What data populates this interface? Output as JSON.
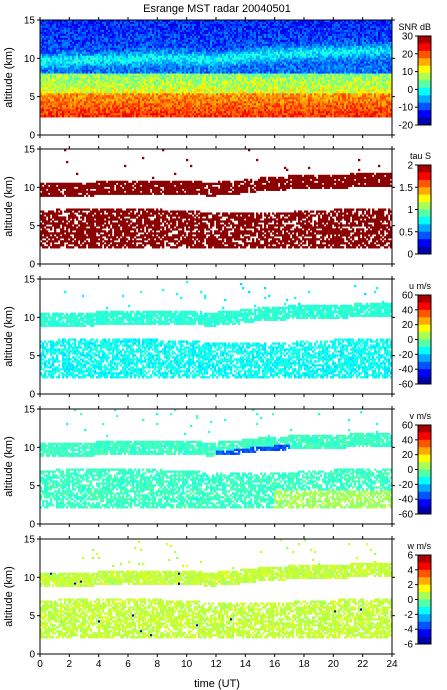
{
  "chart_data": {
    "type": "heatmap",
    "title": "Esrange MST radar 20040501",
    "xlabel": "time (UT)",
    "x_range": [
      0,
      24
    ],
    "x_ticks": [
      0,
      2,
      4,
      6,
      8,
      10,
      12,
      14,
      16,
      18,
      20,
      22,
      24
    ],
    "panels": [
      {
        "name": "snr",
        "ylabel": "altitude (km)",
        "y_range": [
          0,
          15
        ],
        "y_ticks": [
          0,
          5,
          10,
          15
        ],
        "colorbar_label": "SNR dB",
        "colorbar_range": [
          -20,
          30
        ],
        "colorbar_ticks": [
          -20,
          -10,
          0,
          10,
          20,
          30
        ]
      },
      {
        "name": "tau",
        "ylabel": "altitude (km)",
        "y_range": [
          0,
          15
        ],
        "y_ticks": [
          0,
          5,
          10,
          15
        ],
        "colorbar_label": "tau S",
        "colorbar_range": [
          0,
          2
        ],
        "colorbar_ticks": [
          0,
          0.5,
          1,
          1.5,
          2
        ]
      },
      {
        "name": "u",
        "ylabel": "altitude (km)",
        "y_range": [
          0,
          15
        ],
        "y_ticks": [
          0,
          5,
          10,
          15
        ],
        "colorbar_label": "u m/s",
        "colorbar_range": [
          -60,
          60
        ],
        "colorbar_ticks": [
          -60,
          -40,
          -20,
          0,
          20,
          40,
          60
        ]
      },
      {
        "name": "v",
        "ylabel": "altitude (km)",
        "y_range": [
          0,
          15
        ],
        "y_ticks": [
          0,
          5,
          10,
          15
        ],
        "colorbar_label": "v m/s",
        "colorbar_range": [
          -60,
          60
        ],
        "colorbar_ticks": [
          -60,
          -40,
          -20,
          0,
          20,
          40,
          60
        ]
      },
      {
        "name": "w",
        "ylabel": "altitude (km)",
        "y_range": [
          0,
          15
        ],
        "y_ticks": [
          0,
          5,
          10,
          15
        ],
        "colorbar_label": "w m/s",
        "colorbar_range": [
          -6,
          6
        ],
        "colorbar_ticks": [
          -6,
          -4,
          -2,
          0,
          2,
          4,
          6
        ]
      }
    ],
    "colors": {
      "tau_fill": "#8b0000",
      "u_fill": "#33f0d8",
      "v_fill": "#40e6d0",
      "w_fill": "#8cf08c",
      "v_low_fill": "#7cf08a",
      "v_jet_fill": "#1e90ff"
    }
  }
}
